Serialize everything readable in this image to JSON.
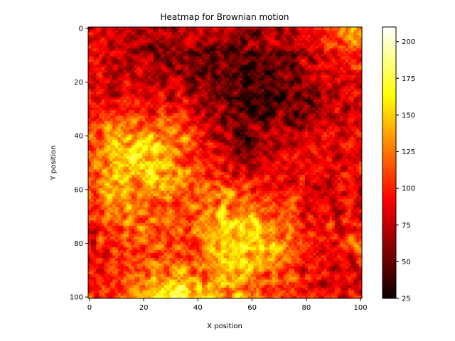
{
  "chart_data": {
    "type": "heatmap",
    "title": "Heatmap for Brownian motion",
    "xlabel": "X position",
    "ylabel": "Y position",
    "xlim": [
      0,
      101
    ],
    "ylim": [
      101,
      0
    ],
    "grid_size": [
      101,
      101
    ],
    "x_ticks": [
      0,
      20,
      40,
      60,
      80,
      100
    ],
    "y_ticks": [
      0,
      20,
      40,
      60,
      80,
      100
    ],
    "colormap": "hot",
    "colorbar": {
      "range": [
        25,
        210
      ],
      "ticks": [
        25,
        50,
        75,
        100,
        125,
        150,
        175,
        200
      ]
    },
    "regional_intensity": {
      "y_rows": [
        0,
        10,
        20,
        30,
        40,
        50,
        60,
        70,
        80,
        90,
        100
      ],
      "x_cols": [
        0,
        10,
        20,
        30,
        40,
        50,
        60,
        70,
        80,
        90,
        100
      ],
      "values": [
        [
          85,
          70,
          60,
          65,
          70,
          75,
          65,
          75,
          85,
          120,
          150
        ],
        [
          95,
          80,
          70,
          60,
          55,
          50,
          45,
          55,
          70,
          90,
          100
        ],
        [
          80,
          85,
          75,
          70,
          55,
          50,
          40,
          45,
          60,
          80,
          85
        ],
        [
          90,
          95,
          100,
          95,
          75,
          60,
          40,
          45,
          55,
          75,
          85
        ],
        [
          105,
          135,
          145,
          130,
          95,
          65,
          50,
          65,
          80,
          90,
          95
        ],
        [
          120,
          145,
          155,
          145,
          110,
          80,
          65,
          80,
          90,
          85,
          90
        ],
        [
          110,
          150,
          145,
          130,
          120,
          110,
          100,
          95,
          85,
          80,
          80
        ],
        [
          100,
          120,
          120,
          110,
          120,
          150,
          145,
          120,
          95,
          85,
          90
        ],
        [
          90,
          100,
          110,
          100,
          120,
          160,
          150,
          135,
          100,
          95,
          100
        ],
        [
          95,
          100,
          120,
          125,
          110,
          150,
          140,
          120,
          95,
          85,
          90
        ],
        [
          100,
          110,
          140,
          175,
          160,
          130,
          110,
          100,
          90,
          80,
          90
        ]
      ]
    }
  }
}
